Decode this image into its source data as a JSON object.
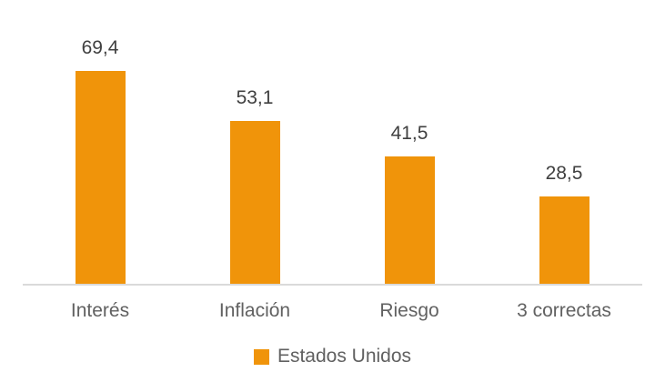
{
  "chart_data": {
    "type": "bar",
    "categories": [
      "Interés",
      "Inflación",
      "Riesgo",
      "3 correctas"
    ],
    "values": [
      69.4,
      53.1,
      41.5,
      28.5
    ],
    "value_labels": [
      "69,4",
      "53,1",
      "41,5",
      "28,5"
    ],
    "series": [
      {
        "name": "Estados Unidos",
        "values": [
          69.4,
          53.1,
          41.5,
          28.5
        ]
      }
    ],
    "title": "",
    "xlabel": "",
    "ylabel": "",
    "ylim": [
      0,
      90
    ],
    "grid": false,
    "y_axis_visible": false,
    "legend_position": "bottom"
  },
  "legend": {
    "label": "Estados Unidos"
  },
  "colors": {
    "bar": "#F0940A",
    "legend_swatch": "#F0940A",
    "axis_line": "#DADADA",
    "value_label": "#404040",
    "category_label": "#616161",
    "legend_label": "#616161",
    "background": "#FFFFFF"
  }
}
